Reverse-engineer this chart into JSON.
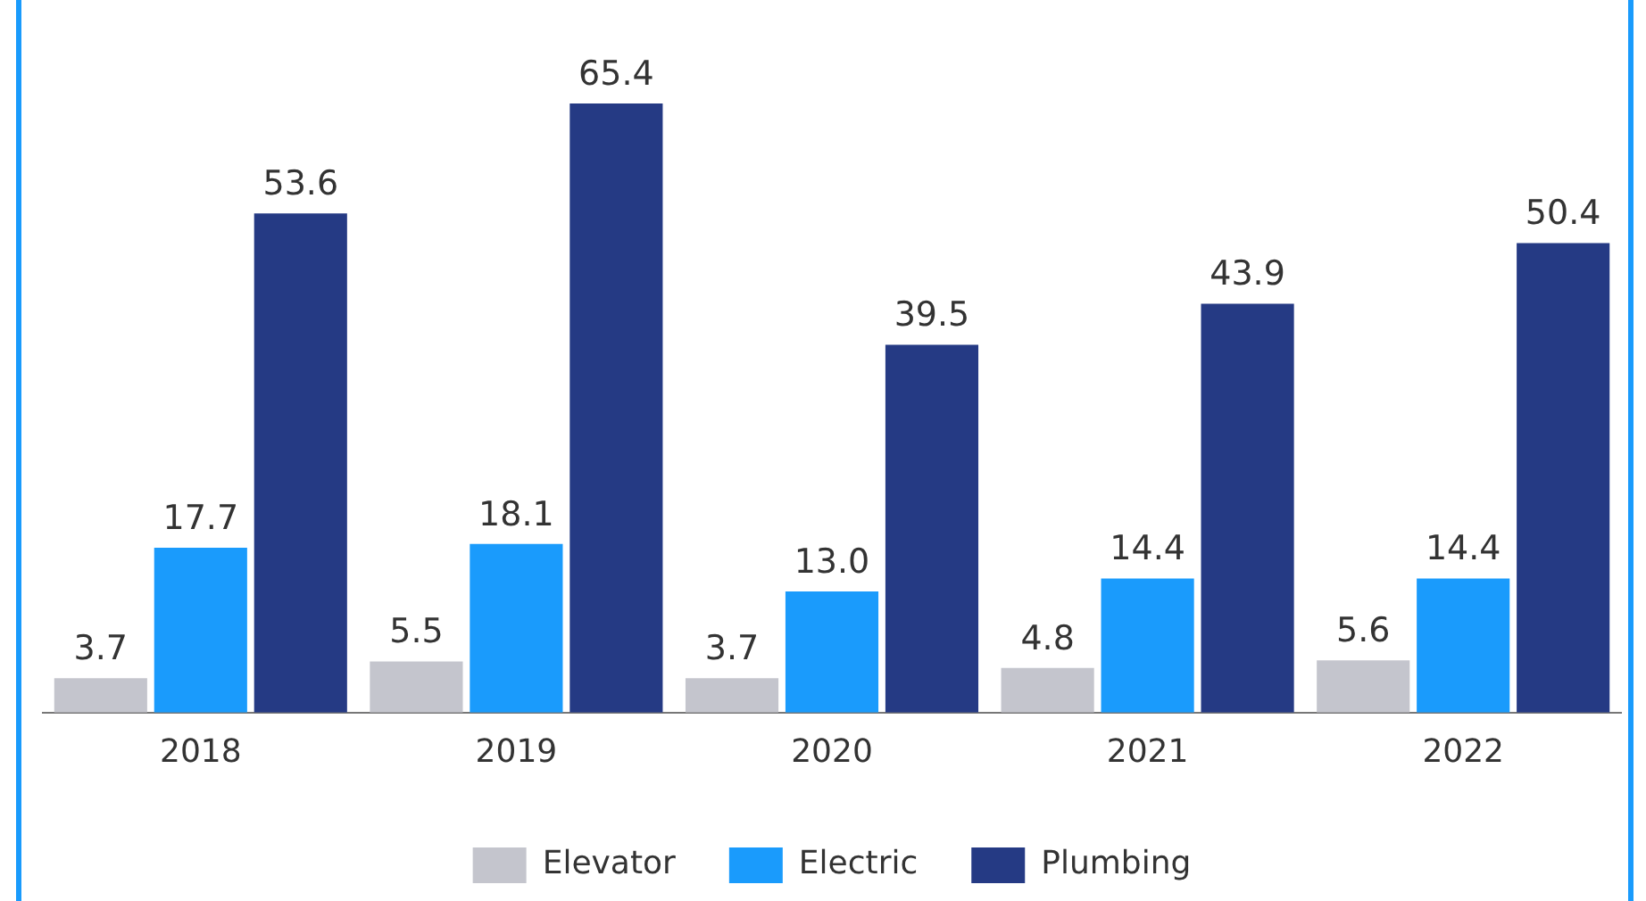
{
  "chart_data": {
    "type": "bar",
    "categories": [
      "2018",
      "2019",
      "2020",
      "2021",
      "2022"
    ],
    "series": [
      {
        "name": "Elevator",
        "color": "#c4c5cd",
        "values": [
          3.7,
          5.5,
          3.7,
          4.8,
          5.6
        ],
        "value_labels": [
          "3.7",
          "5.5",
          "3.7",
          "4.8",
          "5.6"
        ]
      },
      {
        "name": "Electric",
        "color": "#1a9bfc",
        "values": [
          17.7,
          18.1,
          13.0,
          14.4,
          14.4
        ],
        "value_labels": [
          "17.7",
          "18.1",
          "13.0",
          "14.4",
          "14.4"
        ]
      },
      {
        "name": "Plumbing",
        "color": "#253a84",
        "values": [
          53.6,
          65.4,
          39.5,
          43.9,
          50.4
        ],
        "value_labels": [
          "53.6",
          "65.4",
          "39.5",
          "43.9",
          "50.4"
        ]
      }
    ],
    "legend": "bottom",
    "grid": false,
    "tick_labels": "x"
  }
}
